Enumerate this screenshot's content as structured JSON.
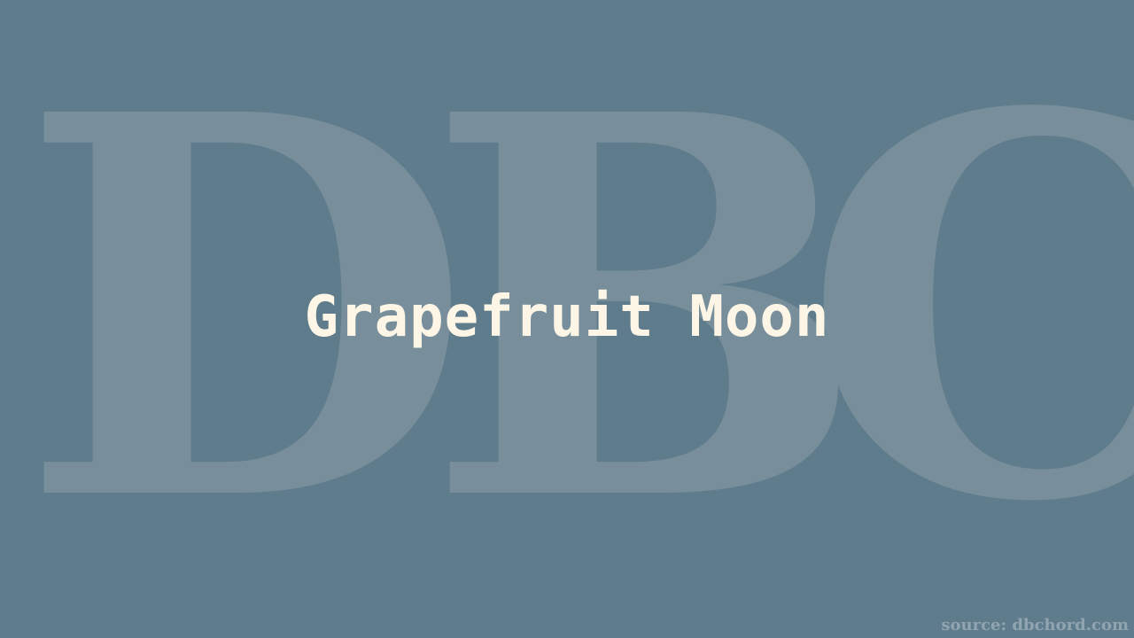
{
  "watermark": {
    "letters": [
      "D",
      "B",
      "C"
    ]
  },
  "title": "Grapefruit Moon",
  "source": "source: dbchord.com",
  "colors": {
    "background": "#5f7c8c",
    "watermark": "#7a909c",
    "title": "#fdf6e6",
    "source": "#91a5b1"
  }
}
